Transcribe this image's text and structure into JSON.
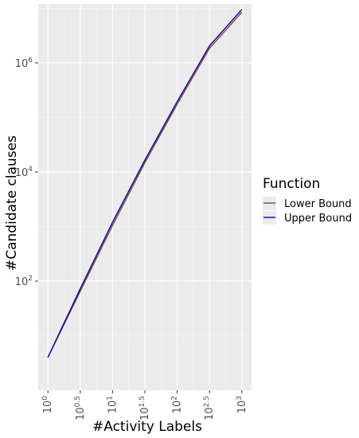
{
  "chart_data": {
    "type": "line",
    "xlabel": "#Activity Labels",
    "ylabel": "#Candidate clauses",
    "x_scale": "log10",
    "y_scale": "log10",
    "xlim": [
      1,
      1000
    ],
    "ylim": [
      1,
      12000000
    ],
    "grid": true,
    "x_ticks": [
      {
        "base": "10",
        "exp": "0"
      },
      {
        "base": "10",
        "exp": "0.5"
      },
      {
        "base": "10",
        "exp": "1"
      },
      {
        "base": "10",
        "exp": "1.5"
      },
      {
        "base": "10",
        "exp": "2"
      },
      {
        "base": "10",
        "exp": "2.5"
      },
      {
        "base": "10",
        "exp": "3"
      }
    ],
    "y_ticks": [
      {
        "base": "10",
        "exp": "2"
      },
      {
        "base": "10",
        "exp": "4"
      },
      {
        "base": "10",
        "exp": "6"
      }
    ],
    "legend": {
      "title": "Function",
      "placement": "right",
      "items": [
        "Lower Bound",
        "Upper Bound"
      ]
    },
    "series": [
      {
        "name": "Lower Bound",
        "color": "#8B4513",
        "x": [
          1,
          3.16,
          10,
          31.6,
          100,
          316,
          1000
        ],
        "y": [
          4,
          65,
          1050,
          14800,
          175000,
          1850000,
          8500000
        ]
      },
      {
        "name": "Upper Bound",
        "color": "#0000CD",
        "x": [
          1,
          3.16,
          10,
          31.6,
          100,
          316,
          1000
        ],
        "y": [
          4,
          72,
          1200,
          16500,
          195000,
          2050000,
          9500000
        ]
      }
    ]
  }
}
